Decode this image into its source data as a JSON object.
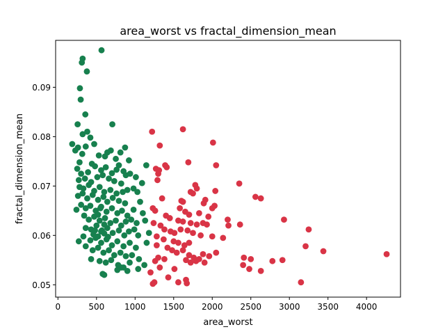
{
  "chart_data": {
    "type": "scatter",
    "title": "area_worst vs fractal_dimension_mean",
    "xlabel": "area_worst",
    "ylabel": "fractal_dimension_mean",
    "xlim": [
      -30,
      4440
    ],
    "ylim": [
      0.0475,
      0.0995
    ],
    "xticks": [
      0,
      500,
      1000,
      1500,
      2000,
      2500,
      3000,
      3500,
      4000
    ],
    "yticks": [
      0.05,
      0.06,
      0.07,
      0.08,
      0.09
    ],
    "yticks_labels": [
      "0.05",
      "0.06",
      "0.07",
      "0.08",
      "0.09"
    ],
    "grid": false,
    "series": [
      {
        "color": "#17804e",
        "points": [
          [
            565,
            0.0975
          ],
          [
            320,
            0.0958
          ],
          [
            310,
            0.095
          ],
          [
            375,
            0.0932
          ],
          [
            285,
            0.0898
          ],
          [
            295,
            0.0875
          ],
          [
            355,
            0.0845
          ],
          [
            255,
            0.0825
          ],
          [
            705,
            0.0825
          ],
          [
            380,
            0.081
          ],
          [
            320,
            0.0805
          ],
          [
            185,
            0.0785
          ],
          [
            420,
            0.0798
          ],
          [
            260,
            0.0778
          ],
          [
            225,
            0.0772
          ],
          [
            360,
            0.078
          ],
          [
            470,
            0.0785
          ],
          [
            530,
            0.0762
          ],
          [
            640,
            0.0768
          ],
          [
            685,
            0.0772
          ],
          [
            810,
            0.0768
          ],
          [
            870,
            0.0778
          ],
          [
            920,
            0.0752
          ],
          [
            315,
            0.0765
          ],
          [
            280,
            0.0748
          ],
          [
            440,
            0.0745
          ],
          [
            610,
            0.076
          ],
          [
            750,
            0.0755
          ],
          [
            790,
            0.0742
          ],
          [
            1145,
            0.0742
          ],
          [
            250,
            0.0735
          ],
          [
            300,
            0.0725
          ],
          [
            390,
            0.0728
          ],
          [
            480,
            0.074
          ],
          [
            560,
            0.0732
          ],
          [
            620,
            0.0738
          ],
          [
            700,
            0.0726
          ],
          [
            760,
            0.0733
          ],
          [
            850,
            0.073
          ],
          [
            880,
            0.0722
          ],
          [
            935,
            0.0725
          ],
          [
            1010,
            0.0718
          ],
          [
            270,
            0.0712
          ],
          [
            350,
            0.0715
          ],
          [
            430,
            0.0708
          ],
          [
            510,
            0.0718
          ],
          [
            580,
            0.0722
          ],
          [
            660,
            0.0715
          ],
          [
            730,
            0.071
          ],
          [
            820,
            0.0705
          ],
          [
            1090,
            0.0706
          ],
          [
            280,
            0.0698
          ],
          [
            330,
            0.0695
          ],
          [
            400,
            0.0702
          ],
          [
            470,
            0.069
          ],
          [
            540,
            0.0698
          ],
          [
            600,
            0.0688
          ],
          [
            680,
            0.0692
          ],
          [
            760,
            0.0685
          ],
          [
            840,
            0.0688
          ],
          [
            900,
            0.0692
          ],
          [
            980,
            0.0695
          ],
          [
            1030,
            0.0688
          ],
          [
            260,
            0.068
          ],
          [
            320,
            0.0685
          ],
          [
            380,
            0.0675
          ],
          [
            450,
            0.0682
          ],
          [
            520,
            0.0672
          ],
          [
            590,
            0.0678
          ],
          [
            640,
            0.0668
          ],
          [
            710,
            0.0676
          ],
          [
            790,
            0.067
          ],
          [
            870,
            0.0665
          ],
          [
            1065,
            0.0668
          ],
          [
            300,
            0.0662
          ],
          [
            360,
            0.0655
          ],
          [
            420,
            0.066
          ],
          [
            490,
            0.065
          ],
          [
            560,
            0.0658
          ],
          [
            630,
            0.0648
          ],
          [
            700,
            0.0655
          ],
          [
            770,
            0.0645
          ],
          [
            830,
            0.065
          ],
          [
            900,
            0.064
          ],
          [
            980,
            0.0652
          ],
          [
            1100,
            0.0645
          ],
          [
            240,
            0.0652
          ],
          [
            340,
            0.064
          ],
          [
            400,
            0.0632
          ],
          [
            470,
            0.0638
          ],
          [
            540,
            0.063
          ],
          [
            610,
            0.0635
          ],
          [
            680,
            0.0625
          ],
          [
            750,
            0.063
          ],
          [
            820,
            0.062
          ],
          [
            880,
            0.0628
          ],
          [
            950,
            0.0632
          ],
          [
            1020,
            0.0625
          ],
          [
            1130,
            0.063
          ],
          [
            360,
            0.0615
          ],
          [
            430,
            0.0612
          ],
          [
            500,
            0.062
          ],
          [
            570,
            0.061
          ],
          [
            640,
            0.0615
          ],
          [
            710,
            0.0605
          ],
          [
            790,
            0.061
          ],
          [
            860,
            0.06
          ],
          [
            920,
            0.0608
          ],
          [
            990,
            0.0612
          ],
          [
            1040,
            0.06
          ],
          [
            1180,
            0.0605
          ],
          [
            330,
            0.0598
          ],
          [
            420,
            0.059
          ],
          [
            490,
            0.0595
          ],
          [
            560,
            0.0585
          ],
          [
            630,
            0.0592
          ],
          [
            700,
            0.058
          ],
          [
            770,
            0.0588
          ],
          [
            850,
            0.0578
          ],
          [
            930,
            0.0585
          ],
          [
            1010,
            0.0575
          ],
          [
            1150,
            0.0585
          ],
          [
            270,
            0.0588
          ],
          [
            360,
            0.0578
          ],
          [
            450,
            0.057
          ],
          [
            520,
            0.0575
          ],
          [
            590,
            0.0565
          ],
          [
            660,
            0.057
          ],
          [
            730,
            0.056
          ],
          [
            810,
            0.0565
          ],
          [
            880,
            0.0558
          ],
          [
            960,
            0.056
          ],
          [
            1050,
            0.0552
          ],
          [
            430,
            0.0552
          ],
          [
            540,
            0.0548
          ],
          [
            620,
            0.0545
          ],
          [
            690,
            0.055
          ],
          [
            780,
            0.054
          ],
          [
            850,
            0.0535
          ],
          [
            930,
            0.0545
          ],
          [
            1040,
            0.0532
          ],
          [
            1120,
            0.054
          ],
          [
            580,
            0.0522
          ],
          [
            600,
            0.052
          ],
          [
            770,
            0.053
          ],
          [
            820,
            0.0535
          ],
          [
            900,
            0.0528
          ],
          [
            460,
            0.0602
          ],
          [
            520,
            0.0598
          ],
          [
            600,
            0.0604
          ],
          [
            650,
            0.0597
          ],
          [
            560,
            0.0608
          ],
          [
            480,
            0.061
          ],
          [
            520,
            0.0642
          ],
          [
            600,
            0.0622
          ],
          [
            550,
            0.0655
          ]
        ]
      },
      {
        "color": "#d93446",
        "points": [
          [
            1620,
            0.0815
          ],
          [
            1220,
            0.081
          ],
          [
            2010,
            0.0788
          ],
          [
            1320,
            0.0782
          ],
          [
            1690,
            0.0748
          ],
          [
            2050,
            0.0742
          ],
          [
            1390,
            0.0742
          ],
          [
            1410,
            0.0738
          ],
          [
            1270,
            0.0735
          ],
          [
            1310,
            0.0732
          ],
          [
            1300,
            0.0725
          ],
          [
            1290,
            0.0712
          ],
          [
            2350,
            0.0705
          ],
          [
            1780,
            0.0702
          ],
          [
            1800,
            0.0695
          ],
          [
            1720,
            0.0688
          ],
          [
            1750,
            0.0685
          ],
          [
            2040,
            0.069
          ],
          [
            2560,
            0.0678
          ],
          [
            2630,
            0.0675
          ],
          [
            1350,
            0.0675
          ],
          [
            1600,
            0.067
          ],
          [
            1620,
            0.0668
          ],
          [
            1910,
            0.0672
          ],
          [
            1890,
            0.0665
          ],
          [
            2030,
            0.066
          ],
          [
            2000,
            0.0655
          ],
          [
            1230,
            0.0655
          ],
          [
            1260,
            0.065
          ],
          [
            1580,
            0.0655
          ],
          [
            1650,
            0.0648
          ],
          [
            1700,
            0.0642
          ],
          [
            1830,
            0.0645
          ],
          [
            1950,
            0.0638
          ],
          [
            2200,
            0.0632
          ],
          [
            2930,
            0.0632
          ],
          [
            1400,
            0.064
          ],
          [
            1450,
            0.0635
          ],
          [
            1560,
            0.063
          ],
          [
            1620,
            0.0628
          ],
          [
            1720,
            0.0625
          ],
          [
            1800,
            0.0622
          ],
          [
            1880,
            0.0625
          ],
          [
            1930,
            0.0622
          ],
          [
            2210,
            0.062
          ],
          [
            2360,
            0.0622
          ],
          [
            3250,
            0.0612
          ],
          [
            1240,
            0.0625
          ],
          [
            1330,
            0.062
          ],
          [
            1380,
            0.0612
          ],
          [
            1460,
            0.0608
          ],
          [
            1510,
            0.0605
          ],
          [
            1590,
            0.0612
          ],
          [
            1680,
            0.061
          ],
          [
            1750,
            0.0605
          ],
          [
            1850,
            0.06
          ],
          [
            2000,
            0.0598
          ],
          [
            2140,
            0.0595
          ],
          [
            1280,
            0.0598
          ],
          [
            1370,
            0.0592
          ],
          [
            1500,
            0.0588
          ],
          [
            1560,
            0.0585
          ],
          [
            1640,
            0.058
          ],
          [
            1700,
            0.0585
          ],
          [
            1280,
            0.058
          ],
          [
            3210,
            0.0578
          ],
          [
            1420,
            0.0575
          ],
          [
            1480,
            0.057
          ],
          [
            1540,
            0.0565
          ],
          [
            1620,
            0.057
          ],
          [
            1700,
            0.056
          ],
          [
            1760,
            0.0555
          ],
          [
            1880,
            0.0562
          ],
          [
            1960,
            0.0558
          ],
          [
            2050,
            0.0565
          ],
          [
            3440,
            0.0568
          ],
          [
            4260,
            0.0562
          ],
          [
            1300,
            0.0555
          ],
          [
            1380,
            0.0552
          ],
          [
            1660,
            0.055
          ],
          [
            1790,
            0.0548
          ],
          [
            1830,
            0.0552
          ],
          [
            2410,
            0.0555
          ],
          [
            2500,
            0.0552
          ],
          [
            2780,
            0.0548
          ],
          [
            2910,
            0.055
          ],
          [
            1260,
            0.0548
          ],
          [
            1720,
            0.0545
          ],
          [
            2400,
            0.054
          ],
          [
            2480,
            0.0532
          ],
          [
            2630,
            0.0528
          ],
          [
            1510,
            0.0532
          ],
          [
            1230,
            0.0502
          ],
          [
            1250,
            0.0505
          ],
          [
            1430,
            0.0515
          ],
          [
            1560,
            0.0505
          ],
          [
            1660,
            0.051
          ],
          [
            1670,
            0.0503
          ],
          [
            3150,
            0.0505
          ],
          [
            1200,
            0.0525
          ],
          [
            1320,
            0.0535
          ],
          [
            1900,
            0.0545
          ]
        ]
      }
    ]
  }
}
